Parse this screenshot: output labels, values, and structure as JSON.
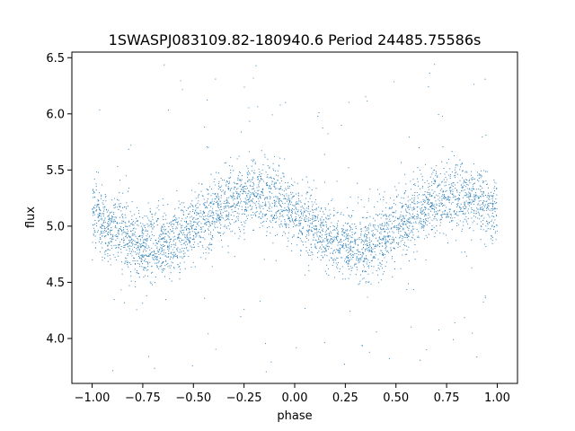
{
  "chart_data": {
    "type": "scatter",
    "title": "1SWASPJ083109.82-180940.6 Period 24485.75586s",
    "xlabel": "phase",
    "ylabel": "flux",
    "xlim": [
      -1.1,
      1.1
    ],
    "ylim": [
      3.6,
      6.55
    ],
    "xticks": [
      -1.0,
      -0.75,
      -0.5,
      -0.25,
      0.0,
      0.25,
      0.5,
      0.75,
      1.0
    ],
    "xtick_labels": [
      "−1.00",
      "−0.75",
      "−0.50",
      "−0.25",
      "0.00",
      "0.25",
      "0.50",
      "0.75",
      "1.00"
    ],
    "yticks": [
      4.0,
      4.5,
      5.0,
      5.5,
      6.0,
      6.5
    ],
    "ytick_labels": [
      "4.0",
      "4.5",
      "5.0",
      "5.5",
      "6.0",
      "6.5"
    ],
    "grid": false,
    "marker_color": "#1f77b4",
    "series": [
      {
        "model": "sinusoid",
        "phase_range": [
          -1.0,
          1.0
        ],
        "mean_flux": 5.05,
        "amplitude": 0.23,
        "phase_of_maximum": -0.2,
        "cycles_over_range": 2,
        "scatter_sigma": 0.15,
        "outlier_range": [
          3.7,
          6.45
        ]
      }
    ]
  }
}
